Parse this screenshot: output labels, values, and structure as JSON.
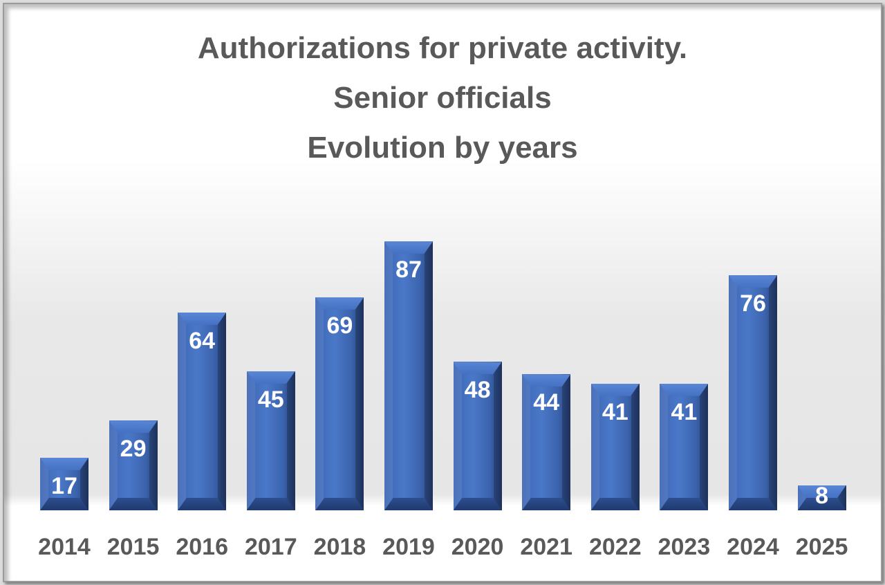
{
  "chart_data": {
    "type": "bar",
    "title": "Authorizations for private activity. Senior officials Evolution by years",
    "title_lines": [
      "Authorizations for private activity.",
      "Senior officials",
      "Evolution by years"
    ],
    "categories": [
      "2014",
      "2015",
      "2016",
      "2017",
      "2018",
      "2019",
      "2020",
      "2021",
      "2022",
      "2023",
      "2024",
      "2025"
    ],
    "values": [
      17,
      29,
      64,
      45,
      69,
      87,
      48,
      44,
      41,
      41,
      76,
      8
    ],
    "xlabel": "",
    "ylabel": "",
    "ylim": [
      0,
      90
    ],
    "grid": false,
    "legend": "none",
    "data_labels": true,
    "bar_color": "#3c66b4"
  }
}
